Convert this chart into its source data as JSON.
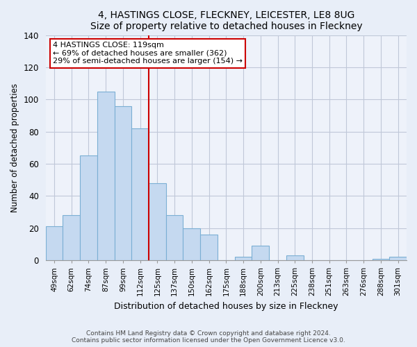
{
  "title": "4, HASTINGS CLOSE, FLECKNEY, LEICESTER, LE8 8UG",
  "subtitle": "Size of property relative to detached houses in Fleckney",
  "xlabel": "Distribution of detached houses by size in Fleckney",
  "ylabel": "Number of detached properties",
  "bar_labels": [
    "49sqm",
    "62sqm",
    "74sqm",
    "87sqm",
    "99sqm",
    "112sqm",
    "125sqm",
    "137sqm",
    "150sqm",
    "162sqm",
    "175sqm",
    "188sqm",
    "200sqm",
    "213sqm",
    "225sqm",
    "238sqm",
    "251sqm",
    "263sqm",
    "276sqm",
    "288sqm",
    "301sqm"
  ],
  "bar_values": [
    21,
    28,
    65,
    105,
    96,
    82,
    48,
    28,
    20,
    16,
    0,
    2,
    9,
    0,
    3,
    0,
    0,
    0,
    0,
    1,
    2
  ],
  "bar_color": "#c5d9f0",
  "bar_edge_color": "#7bafd4",
  "reference_line_x": 6,
  "reference_line_color": "#cc0000",
  "annotation_text": "4 HASTINGS CLOSE: 119sqm\n← 69% of detached houses are smaller (362)\n29% of semi-detached houses are larger (154) →",
  "annotation_box_color": "#ffffff",
  "annotation_box_edge_color": "#cc0000",
  "ylim": [
    0,
    140
  ],
  "yticks": [
    0,
    20,
    40,
    60,
    80,
    100,
    120,
    140
  ],
  "footnote": "Contains HM Land Registry data © Crown copyright and database right 2024.\nContains public sector information licensed under the Open Government Licence v3.0.",
  "background_color": "#e8eef8",
  "plot_background_color": "#eef2fa"
}
